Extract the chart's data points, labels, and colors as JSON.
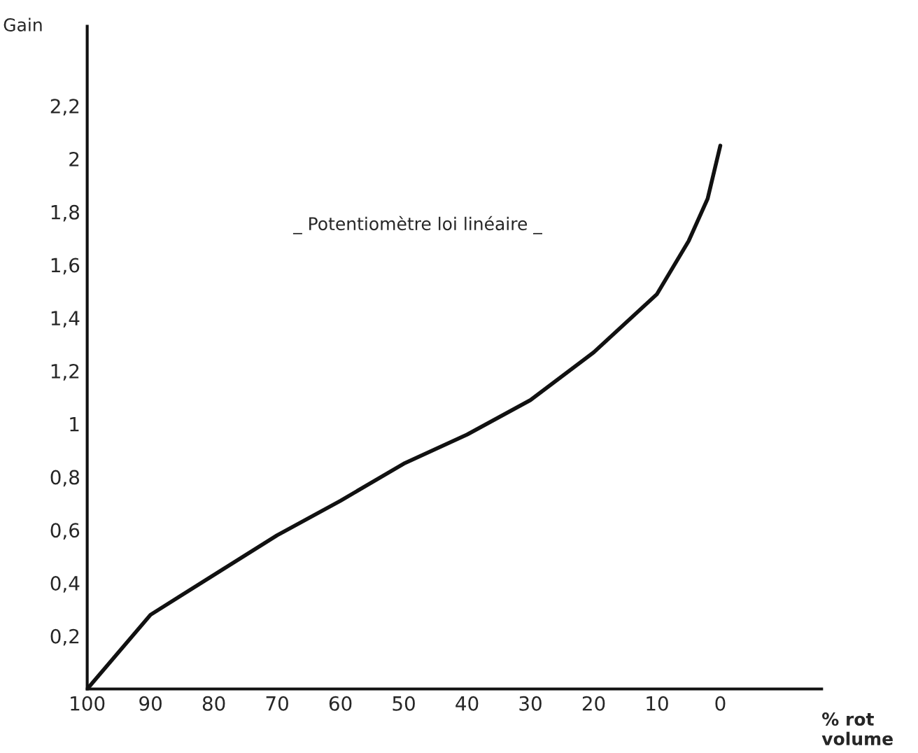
{
  "chart_data": {
    "type": "line",
    "xlabel": "% rot volume",
    "ylabel": "Gain",
    "annotations": [
      "_ Potentiomètre loi linéaire _"
    ],
    "x": [
      100,
      90,
      80,
      70,
      60,
      50,
      40,
      30,
      20,
      10,
      5,
      2,
      0
    ],
    "series": [
      {
        "color": "#111111",
        "values": [
          0,
          0.28,
          0.43,
          0.58,
          0.71,
          0.85,
          0.96,
          1.09,
          1.27,
          1.49,
          1.69,
          1.85,
          2.05
        ]
      }
    ],
    "xlim": [
      100,
      -16
    ],
    "ylim": [
      0,
      2.5
    ],
    "xticks": [
      100,
      90,
      80,
      70,
      60,
      50,
      40,
      30,
      20,
      10,
      0
    ],
    "yticks": [
      {
        "value": 0.2,
        "label": "0,2"
      },
      {
        "value": 0.4,
        "label": "0,4"
      },
      {
        "value": 0.6,
        "label": "0,6"
      },
      {
        "value": 0.8,
        "label": "0,8"
      },
      {
        "value": 1,
        "label": "1"
      },
      {
        "value": 1.2,
        "label": "1,2"
      },
      {
        "value": 1.4,
        "label": "1,4"
      },
      {
        "value": 1.6,
        "label": "1,6"
      },
      {
        "value": 1.8,
        "label": "1,8"
      },
      {
        "value": 2,
        "label": "2"
      },
      {
        "value": 2.2,
        "label": "2,2"
      }
    ],
    "grid": false,
    "legend": false,
    "marker": "none",
    "line_style": "solid"
  }
}
